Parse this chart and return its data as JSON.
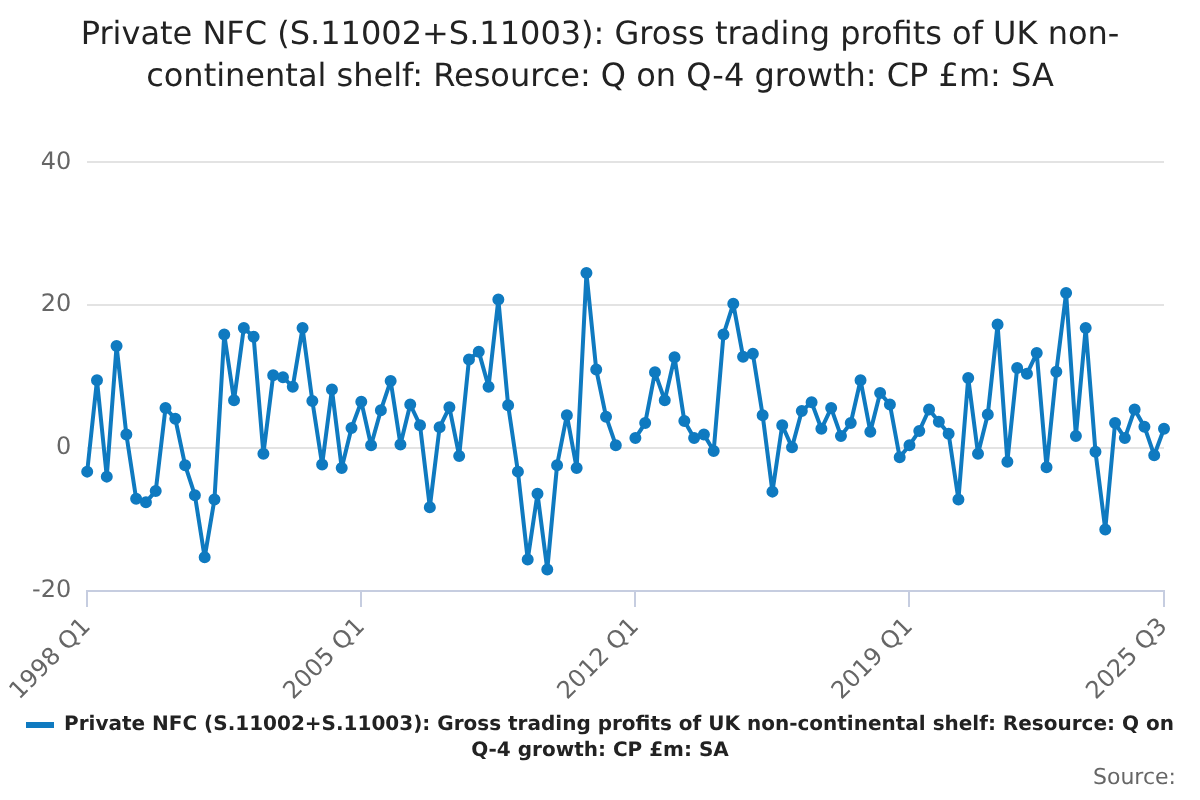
{
  "chart_data": {
    "type": "line",
    "title": "Private NFC (S.11002+S.11003): Gross trading profits of UK non-continental shelf: Resource: Q on Q-4 growth: CP £m: SA",
    "categories": [
      "1998 Q1",
      null,
      null,
      null,
      null,
      null,
      null,
      null,
      null,
      null,
      null,
      null,
      null,
      null,
      null,
      null,
      null,
      null,
      null,
      null,
      null,
      null,
      null,
      null,
      null,
      null,
      null,
      null,
      "2005 Q1",
      null,
      null,
      null,
      null,
      null,
      null,
      null,
      null,
      null,
      null,
      null,
      null,
      null,
      null,
      null,
      null,
      null,
      null,
      null,
      null,
      null,
      null,
      null,
      null,
      null,
      null,
      null,
      "2012 Q1",
      null,
      null,
      null,
      null,
      null,
      null,
      null,
      null,
      null,
      null,
      null,
      null,
      null,
      null,
      null,
      null,
      null,
      null,
      null,
      null,
      null,
      null,
      null,
      null,
      null,
      null,
      null,
      "2019 Q1",
      null,
      null,
      null,
      null,
      null,
      null,
      null,
      null,
      null,
      null,
      null,
      null,
      null,
      null,
      null,
      null,
      null,
      null,
      null,
      null,
      null,
      null,
      null,
      null,
      null,
      "2025 Q3"
    ],
    "series": [
      {
        "name": "Private NFC (S.11002+S.11003): Gross trading profits of UK non-continental shelf: Resource: Q on Q-4 growth: CP £m: SA",
        "color": "#0f7ac0",
        "values": [
          -3.3,
          9.5,
          -4.0,
          14.3,
          1.9,
          -7.1,
          -7.6,
          -6.0,
          5.6,
          4.1,
          -2.4,
          -6.6,
          -15.3,
          -7.2,
          15.9,
          6.7,
          16.8,
          15.6,
          -0.8,
          10.2,
          9.9,
          8.6,
          16.8,
          6.6,
          -2.3,
          8.2,
          -2.8,
          2.8,
          6.5,
          0.4,
          5.3,
          9.4,
          0.5,
          6.1,
          3.2,
          -8.3,
          2.9,
          5.7,
          -1.1,
          12.4,
          13.5,
          8.6,
          20.8,
          6.0,
          -3.3,
          -15.6,
          -6.4,
          -17.0,
          -2.4,
          4.6,
          -2.8,
          24.5,
          11.0,
          4.4,
          0.4,
          null,
          1.4,
          3.5,
          10.6,
          6.7,
          12.7,
          3.8,
          1.4,
          1.9,
          -0.4,
          15.9,
          20.2,
          12.8,
          13.2,
          4.6,
          -6.1,
          3.2,
          0.1,
          5.2,
          6.4,
          2.7,
          5.6,
          1.7,
          3.5,
          9.5,
          2.3,
          7.7,
          6.1,
          -1.3,
          0.4,
          2.4,
          5.4,
          3.7,
          2.0,
          -7.2,
          9.8,
          -0.8,
          4.7,
          17.3,
          -1.9,
          11.2,
          10.4,
          13.3,
          -2.7,
          10.7,
          21.7,
          1.7,
          16.8,
          -0.5,
          -11.4,
          3.5,
          1.4,
          5.4,
          3.0,
          -1.0,
          2.7
        ]
      }
    ],
    "ylim": [
      -20,
      40
    ],
    "yticks": [
      -20,
      0,
      20,
      40
    ],
    "grid": "y",
    "legend": "bottom",
    "marker": "circle",
    "line_style": "solid",
    "annotations": [
      "Source:"
    ]
  }
}
